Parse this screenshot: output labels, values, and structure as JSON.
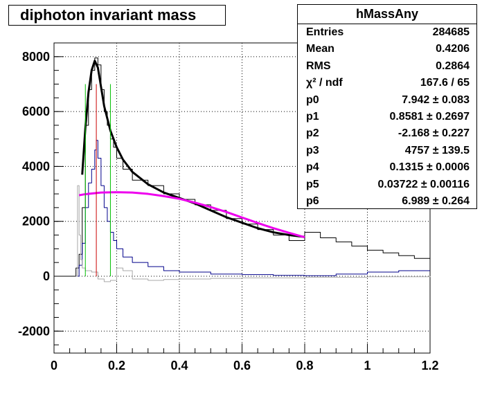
{
  "chart_data": {
    "type": "line",
    "title": "diphoton invariant mass",
    "xlim": [
      0,
      1.2
    ],
    "ylim": [
      -2800,
      8500
    ],
    "grid": true,
    "x_ticks": [
      "0",
      "0.2",
      "0.4",
      "0.6",
      "0.8",
      "1",
      "1.2"
    ],
    "y_ticks": [
      "-2000",
      "0",
      "2000",
      "4000",
      "6000",
      "8000"
    ],
    "x_tick_values": [
      0,
      0.2,
      0.4,
      0.6,
      0.8,
      1.0,
      1.2
    ],
    "y_tick_values": [
      -2000,
      0,
      2000,
      4000,
      6000,
      8000
    ],
    "series": [
      {
        "color": "#000000",
        "style": "step",
        "x": [
          0.0,
          0.06,
          0.07,
          0.08,
          0.09,
          0.1,
          0.11,
          0.12,
          0.13,
          0.14,
          0.15,
          0.16,
          0.17,
          0.18,
          0.19,
          0.2,
          0.22,
          0.25,
          0.3,
          0.35,
          0.4,
          0.45,
          0.5,
          0.55,
          0.6,
          0.65,
          0.7,
          0.75,
          0.8,
          0.85,
          0.9,
          0.95,
          1.0,
          1.05,
          1.1,
          1.15,
          1.2
        ],
        "y": [
          0,
          0,
          300,
          800,
          2500,
          5500,
          6800,
          7500,
          7950,
          7700,
          6800,
          6000,
          5500,
          5000,
          4700,
          4300,
          3900,
          3500,
          3300,
          3000,
          2800,
          2600,
          2400,
          2100,
          1900,
          1700,
          1500,
          1300,
          1600,
          1400,
          1250,
          1100,
          950,
          850,
          750,
          650,
          550
        ]
      },
      {
        "color": "#000000",
        "style": "line",
        "x": [
          0.09,
          0.1,
          0.11,
          0.12,
          0.13,
          0.14,
          0.15,
          0.16,
          0.18,
          0.2,
          0.22,
          0.25,
          0.3,
          0.35,
          0.4,
          0.45,
          0.5,
          0.55,
          0.6,
          0.65,
          0.7,
          0.75,
          0.8
        ],
        "y": [
          3700,
          5400,
          6700,
          7500,
          7850,
          7600,
          6900,
          6200,
          5300,
          4700,
          4250,
          3800,
          3350,
          3050,
          2850,
          2650,
          2400,
          2150,
          1950,
          1750,
          1600,
          1500,
          1430
        ]
      },
      {
        "color": "#00008b",
        "style": "step",
        "x": [
          0.07,
          0.08,
          0.09,
          0.1,
          0.11,
          0.12,
          0.13,
          0.135,
          0.14,
          0.15,
          0.16,
          0.17,
          0.18,
          0.19,
          0.2,
          0.22,
          0.25,
          0.3,
          0.35,
          0.4,
          0.5,
          0.6,
          0.7,
          0.8,
          0.9,
          1.0,
          1.1,
          1.2
        ],
        "y": [
          0,
          400,
          1200,
          2500,
          3400,
          3900,
          4600,
          4950,
          4300,
          3300,
          2500,
          2000,
          1600,
          1300,
          1000,
          700,
          500,
          350,
          200,
          150,
          80,
          60,
          30,
          20,
          80,
          150,
          200,
          200
        ]
      },
      {
        "color": "#a9a9a9",
        "style": "step",
        "x": [
          0.07,
          0.075,
          0.08,
          0.085,
          0.09,
          0.1,
          0.12,
          0.14,
          0.16,
          0.18,
          0.2,
          0.22,
          0.25,
          0.3,
          0.35,
          0.4,
          0.5,
          0.6,
          0.8,
          1.0,
          1.2
        ],
        "y": [
          0,
          3300,
          1500,
          600,
          300,
          200,
          150,
          -100,
          -200,
          -150,
          300,
          200,
          -100,
          -150,
          -120,
          -100,
          -80,
          -60,
          -40,
          -20,
          0
        ]
      },
      {
        "color": "#ee00ee",
        "style": "line",
        "x": [
          0.08,
          0.1,
          0.15,
          0.2,
          0.25,
          0.3,
          0.35,
          0.4,
          0.45,
          0.5,
          0.55,
          0.6,
          0.65,
          0.7,
          0.75,
          0.8
        ],
        "y": [
          2950,
          2990,
          3050,
          3060,
          3050,
          3000,
          2920,
          2820,
          2680,
          2520,
          2340,
          2140,
          1940,
          1750,
          1580,
          1420
        ]
      },
      {
        "color": "#00c000",
        "style": "vline",
        "x": [
          0.1,
          0.18
        ],
        "y": [
          7000,
          7000
        ]
      },
      {
        "color": "#cc0000",
        "style": "vline",
        "x": [
          0.135
        ],
        "y": [
          7000
        ]
      }
    ]
  },
  "stats": {
    "title": "hMassAny",
    "rows": [
      {
        "label": "Entries",
        "value": "284685"
      },
      {
        "label": "Mean",
        "value": "0.4206"
      },
      {
        "label": "RMS",
        "value": "0.2864"
      },
      {
        "label": "χ² / ndf",
        "value": "167.6 / 65"
      },
      {
        "label": "p0",
        "value": "7.942 ± 0.083"
      },
      {
        "label": "p1",
        "value": "0.8581 ± 0.2697"
      },
      {
        "label": "p2",
        "value": "-2.168 ± 0.227"
      },
      {
        "label": "p3",
        "value": "4757 ± 139.5"
      },
      {
        "label": "p4",
        "value": "0.1315 ± 0.0006"
      },
      {
        "label": "p5",
        "value": "0.03722 ± 0.00116"
      },
      {
        "label": "p6",
        "value": "6.989 ± 0.264"
      }
    ]
  }
}
